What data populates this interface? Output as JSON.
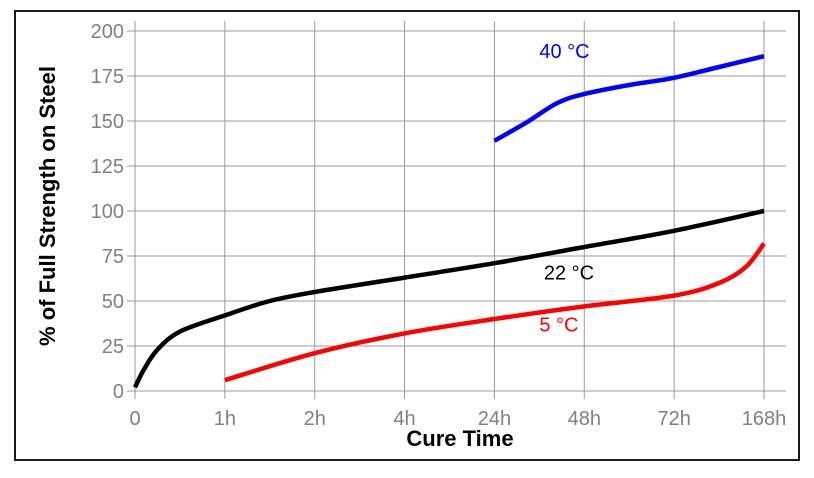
{
  "chart_data": {
    "type": "line",
    "xlabel": "Cure Time",
    "ylabel": "% of Full Strength on Steel",
    "categories": [
      "0",
      "1h",
      "2h",
      "4h",
      "24h",
      "48h",
      "72h",
      "168h"
    ],
    "yticks": [
      0,
      25,
      50,
      75,
      100,
      125,
      150,
      175,
      200
    ],
    "ylim": [
      0,
      200
    ],
    "grid": true,
    "series": [
      {
        "name": "40 °C",
        "color": "#0000ff",
        "points": [
          [
            4,
            139
          ],
          [
            4.35,
            149
          ],
          [
            4.7,
            160
          ],
          [
            5,
            165
          ],
          [
            5.5,
            170
          ],
          [
            6,
            174
          ],
          [
            6.5,
            180
          ],
          [
            7,
            186
          ]
        ]
      },
      {
        "name": "22 °C",
        "color": "#000000",
        "points": [
          [
            0,
            2
          ],
          [
            0.1,
            12
          ],
          [
            0.25,
            23
          ],
          [
            0.5,
            33
          ],
          [
            1,
            42
          ],
          [
            1.5,
            50
          ],
          [
            2,
            55
          ],
          [
            3,
            63
          ],
          [
            4,
            71
          ],
          [
            5,
            80
          ],
          [
            6,
            89
          ],
          [
            7,
            100
          ]
        ]
      },
      {
        "name": "5 °C",
        "color": "#ff0000",
        "points": [
          [
            1,
            6
          ],
          [
            2,
            21
          ],
          [
            3,
            32
          ],
          [
            4,
            40
          ],
          [
            5,
            47
          ],
          [
            6,
            53
          ],
          [
            6.5,
            60
          ],
          [
            6.8,
            69
          ],
          [
            7,
            82
          ]
        ]
      }
    ],
    "annotations": [
      {
        "series": "40 °C",
        "x": 4.5,
        "y": 185
      },
      {
        "series": "22 °C",
        "x": 4.55,
        "y": 62
      },
      {
        "series": "5 °C",
        "x": 4.5,
        "y": 33
      }
    ]
  }
}
